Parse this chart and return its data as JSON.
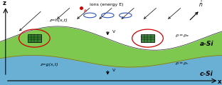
{
  "figsize": [
    3.12,
    1.19
  ],
  "dpi": 100,
  "bg_color": "#ffffff",
  "green_color": "#7ec850",
  "blue_color": "#6ab0d4",
  "ions_label": "ions (energy E)",
  "label_h": "z=h(x,t)",
  "label_g": "z=g(x,t)",
  "label_aSi": "a-Si",
  "label_cSi": "c-Si",
  "red_dot_color": "#cc0000",
  "blue_circle_color": "#3355bb",
  "crystal_color": "#2a7a2a",
  "ellipse_color": "#cc0000",
  "arrow_color": "#000000"
}
